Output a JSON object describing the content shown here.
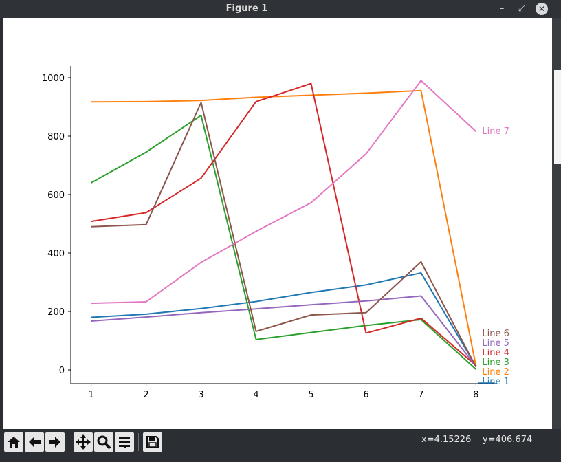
{
  "window": {
    "title": "Figure 1"
  },
  "toolbar": {
    "buttons": [
      "home-icon",
      "back-arrow-icon",
      "forward-arrow-icon",
      "pan-icon",
      "zoom-icon",
      "configure-subplots-icon",
      "save-icon"
    ],
    "x_readout": "x=4.15226",
    "y_readout": "y=406.674"
  },
  "chart_data": {
    "type": "line",
    "x": [
      1,
      2,
      3,
      4,
      5,
      6,
      7,
      8
    ],
    "xlim": [
      0.63,
      8.37
    ],
    "ylim": [
      -47,
      1040
    ],
    "xticks": [
      "1",
      "2",
      "3",
      "4",
      "5",
      "6",
      "7",
      "8"
    ],
    "yticks": [
      "0",
      "200",
      "400",
      "600",
      "800",
      "1000"
    ],
    "grid": false,
    "series": [
      {
        "name": "Line 1",
        "color": "#1f77b4",
        "values": [
          180,
          191,
          210,
          234,
          265,
          291,
          332,
          12
        ]
      },
      {
        "name": "Line 2",
        "color": "#ff7f0e",
        "values": [
          917,
          918,
          922,
          933,
          940,
          947,
          956,
          13
        ]
      },
      {
        "name": "Line 3",
        "color": "#2ca02c",
        "values": [
          640,
          745,
          871,
          104,
          128,
          152,
          172,
          2
        ]
      },
      {
        "name": "Line 4",
        "color": "#d62728",
        "values": [
          508,
          538,
          656,
          918,
          980,
          126,
          177,
          15
        ]
      },
      {
        "name": "Line 5",
        "color": "#9467bd",
        "values": [
          167,
          181,
          196,
          209,
          223,
          236,
          253,
          12
        ]
      },
      {
        "name": "Line 6",
        "color": "#8c564b",
        "values": [
          490,
          497,
          915,
          132,
          188,
          196,
          370,
          10
        ]
      },
      {
        "name": "Line 7",
        "color": "#e377c2",
        "values": [
          228,
          233,
          368,
          474,
          572,
          739,
          990,
          816
        ]
      }
    ]
  }
}
